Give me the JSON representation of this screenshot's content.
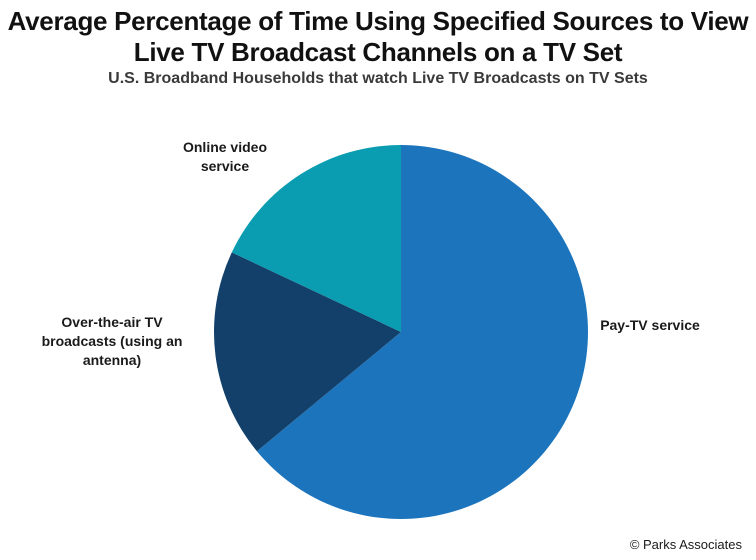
{
  "chart_data": {
    "type": "pie",
    "title": "Average Percentage of Time Using Specified Sources to View Live TV Broadcast Channels on a TV Set",
    "subtitle": "U.S. Broadband Households that watch Live TV Broadcasts on TV Sets",
    "categories": [
      "Pay-TV service",
      "Over-the-air  TV broadcasts (using an antenna)",
      "Online video service"
    ],
    "values": [
      64,
      18,
      18
    ],
    "colors": [
      "#1c75bc",
      "#12406a",
      "#0a9cb0"
    ],
    "start_angle_deg": 0,
    "direction": "clockwise",
    "legend": "none"
  },
  "labels": {
    "pay_tv": "Pay-TV service",
    "ota": "Over-the-air  TV\nbroadcasts (using an\nantenna)",
    "online": "Online video\nservice"
  },
  "copyright": "© Parks Associates"
}
